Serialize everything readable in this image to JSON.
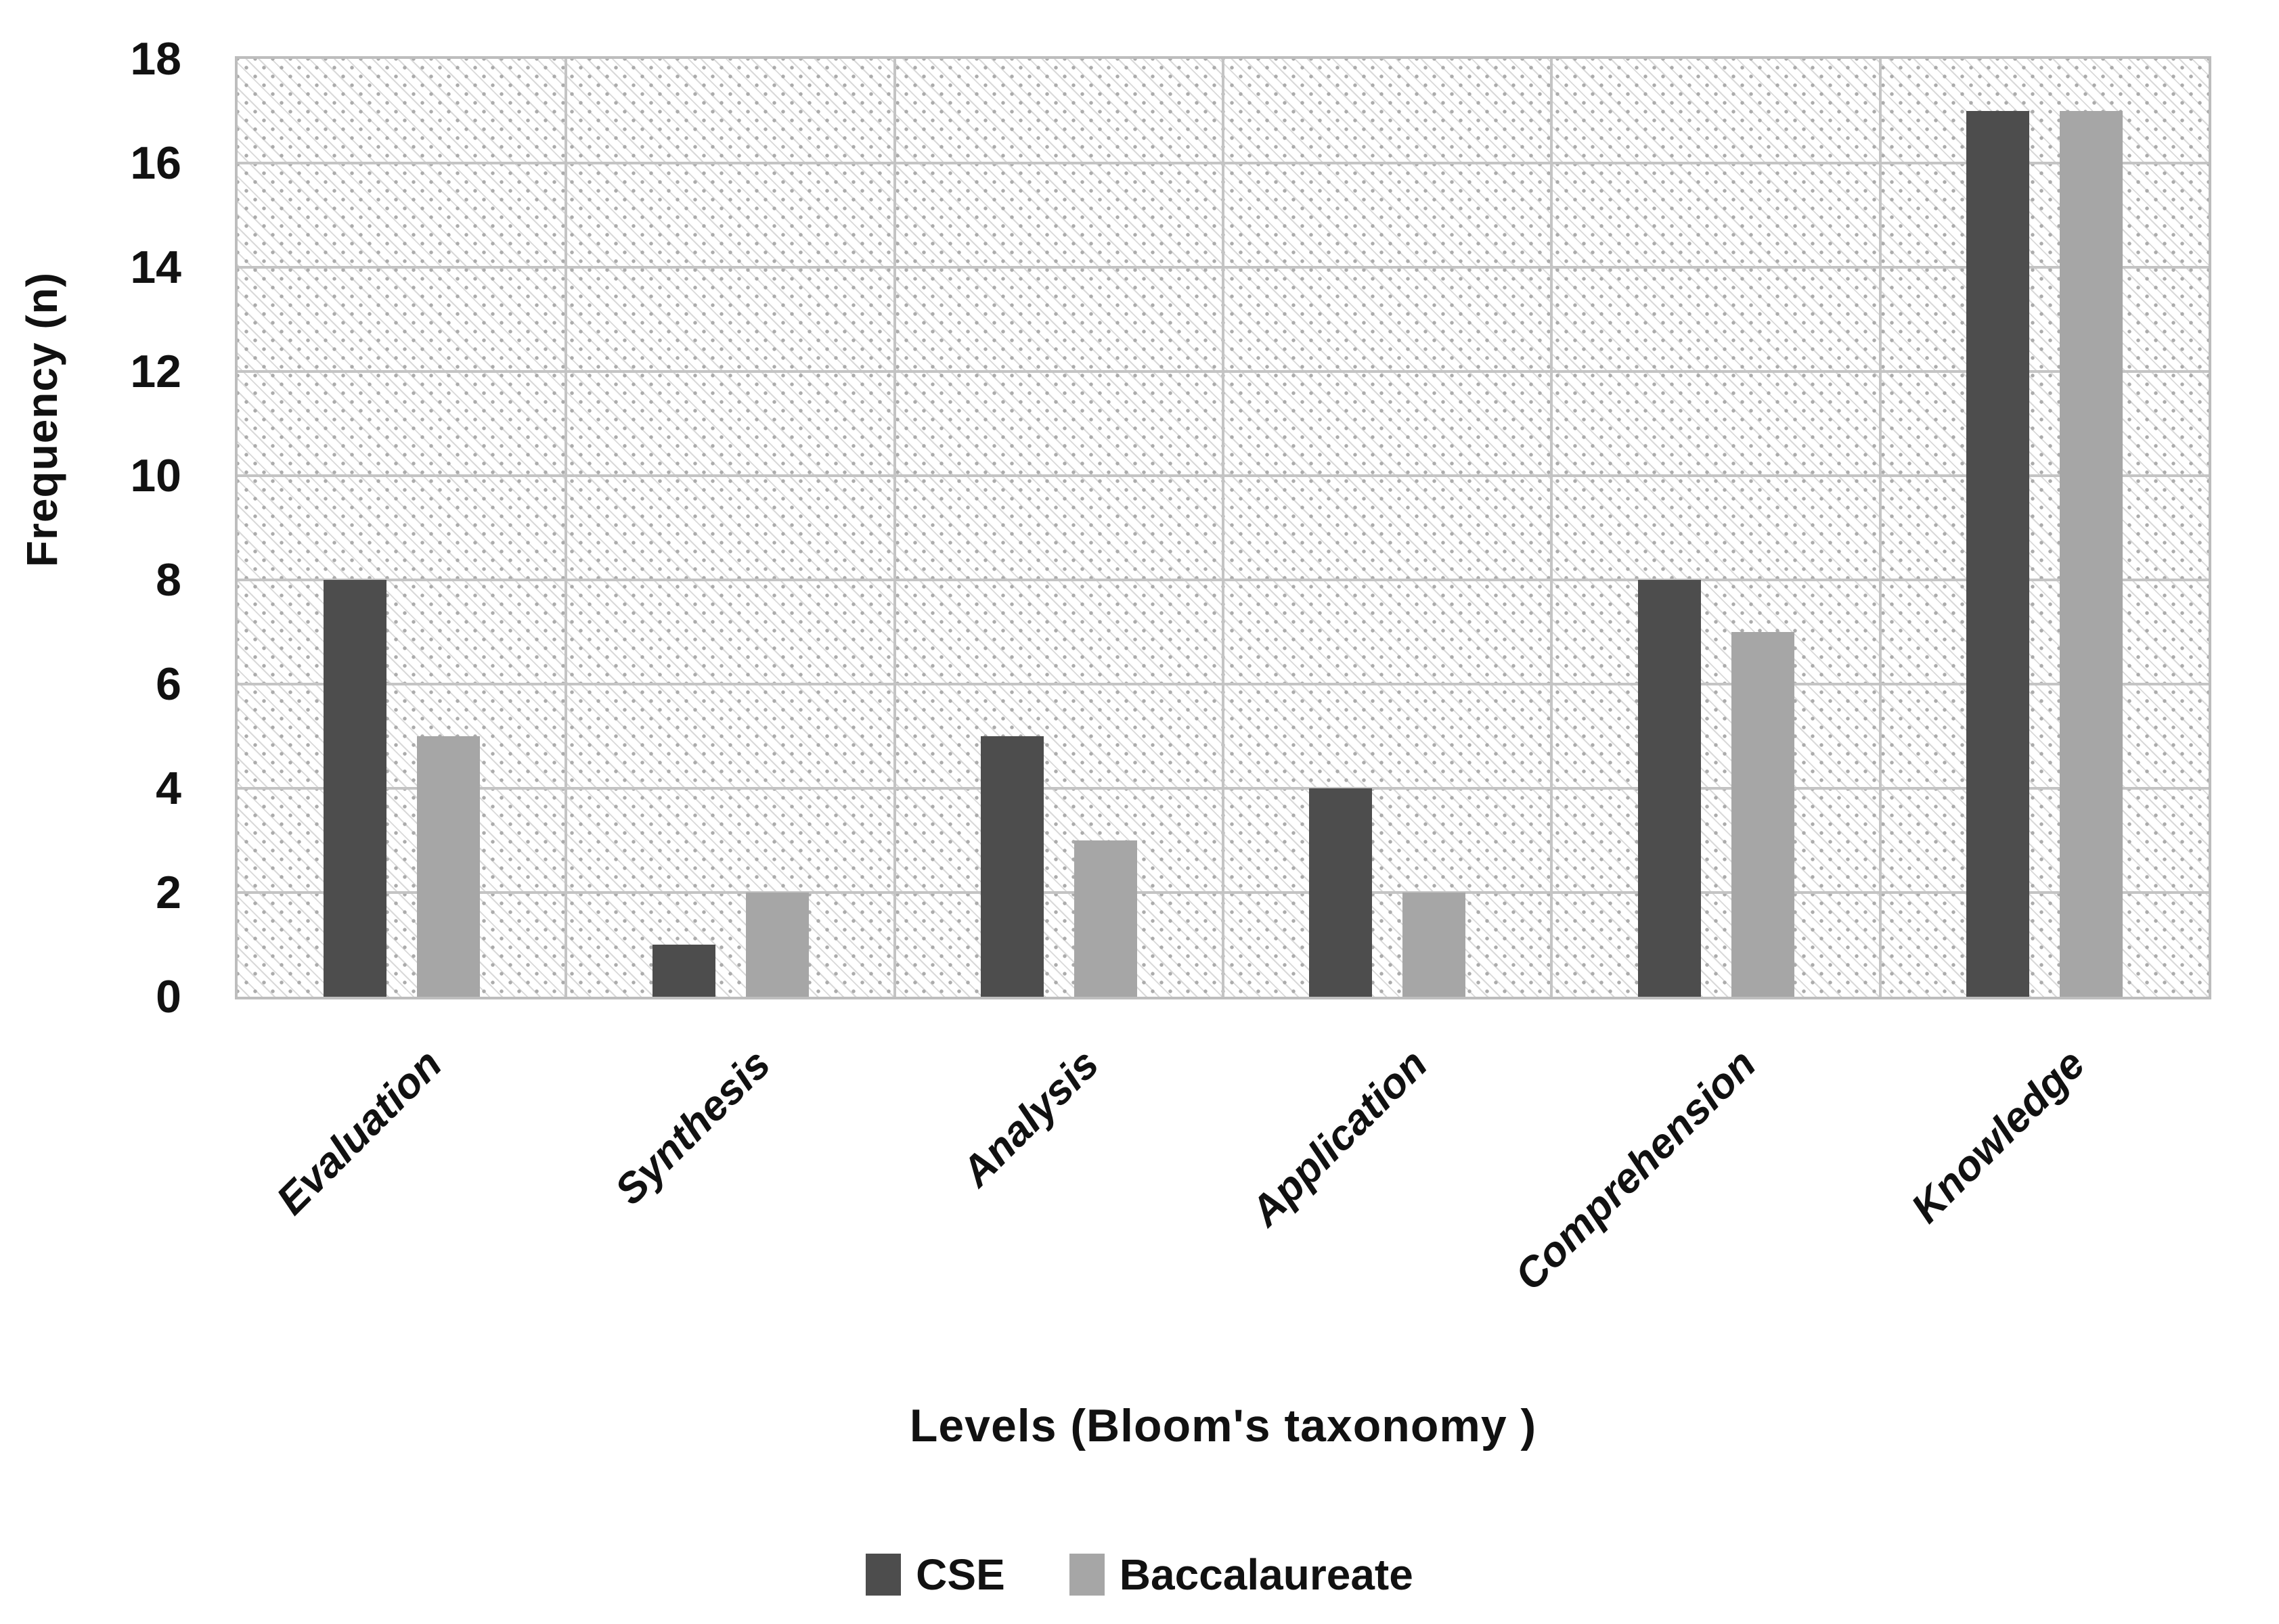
{
  "chart_data": {
    "type": "bar",
    "title": "",
    "categories": [
      "Evaluation",
      "Synthesis",
      "Analysis",
      "Application",
      "Comprehension",
      "Knowledge"
    ],
    "series": [
      {
        "name": "CSE",
        "color": "#4d4d4d",
        "values": [
          8,
          1,
          5,
          4,
          8,
          17
        ]
      },
      {
        "name": "Baccalaureate",
        "color": "#a6a6a6",
        "values": [
          5,
          2,
          3,
          2,
          7,
          17
        ]
      }
    ],
    "xlabel": "Levels (Bloom's taxonomy )",
    "ylabel": "Frequency (n)",
    "ylim": [
      0,
      18
    ],
    "ytick_step": 2,
    "yticks": [
      0,
      2,
      4,
      6,
      8,
      10,
      12,
      14,
      16,
      18
    ],
    "grid": "horizontal-and-vertical-category-boundaries",
    "legend_position": "bottom-center",
    "plot_background": "white-with-light-gray-downward-diagonal-hatch-and-dots",
    "bar_orientation": "vertical-grouped"
  },
  "styles": {
    "gridline_color": "#c4c4c4",
    "plot_border_color": "#bdbdbd",
    "hatch_line_color": "#d9d9d9",
    "hatch_dot_color": "#ababab",
    "text_color": "#111111"
  }
}
